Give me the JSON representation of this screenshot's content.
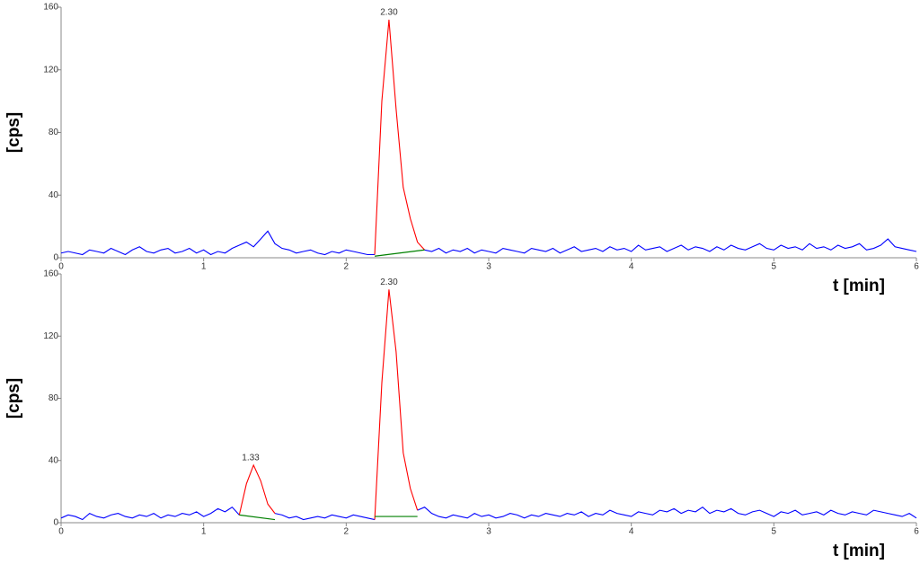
{
  "chart_data": [
    {
      "type": "line",
      "ylabel": "[cps]",
      "xlabel": "t [min]",
      "xlim": [
        0,
        6
      ],
      "ylim": [
        0,
        160
      ],
      "xticks": [
        0,
        1,
        2,
        3,
        4,
        5,
        6
      ],
      "yticks": [
        0,
        40,
        80,
        120,
        160
      ],
      "x": [
        0,
        0.05,
        0.1,
        0.15,
        0.2,
        0.25,
        0.3,
        0.35,
        0.4,
        0.45,
        0.5,
        0.55,
        0.6,
        0.65,
        0.7,
        0.75,
        0.8,
        0.85,
        0.9,
        0.95,
        1,
        1.05,
        1.1,
        1.15,
        1.2,
        1.25,
        1.3,
        1.35,
        1.4,
        1.45,
        1.5,
        1.55,
        1.6,
        1.65,
        1.7,
        1.75,
        1.8,
        1.85,
        1.9,
        1.95,
        2,
        2.05,
        2.1,
        2.15,
        2.2,
        2.25,
        2.3,
        2.35,
        2.4,
        2.45,
        2.5,
        2.55,
        2.6,
        2.65,
        2.7,
        2.75,
        2.8,
        2.85,
        2.9,
        2.95,
        3,
        3.05,
        3.1,
        3.15,
        3.2,
        3.25,
        3.3,
        3.35,
        3.4,
        3.45,
        3.5,
        3.55,
        3.6,
        3.65,
        3.7,
        3.75,
        3.8,
        3.85,
        3.9,
        3.95,
        4,
        4.05,
        4.1,
        4.15,
        4.2,
        4.25,
        4.3,
        4.35,
        4.4,
        4.45,
        4.5,
        4.55,
        4.6,
        4.65,
        4.7,
        4.75,
        4.8,
        4.85,
        4.9,
        4.95,
        5,
        5.05,
        5.1,
        5.15,
        5.2,
        5.25,
        5.3,
        5.35,
        5.4,
        5.45,
        5.5,
        5.55,
        5.6,
        5.65,
        5.7,
        5.75,
        5.8,
        5.85,
        5.9,
        5.95,
        6
      ],
      "series": [
        {
          "color": "#0000ff",
          "values": [
            3,
            4,
            3,
            2,
            5,
            4,
            3,
            6,
            4,
            2,
            5,
            7,
            4,
            3,
            5,
            6,
            3,
            4,
            6,
            3,
            5,
            2,
            4,
            3,
            6,
            8,
            10,
            7,
            12,
            17,
            9,
            6,
            5,
            3,
            4,
            5,
            3,
            2,
            4,
            3,
            5,
            4,
            3,
            2,
            2,
            null,
            null,
            null,
            null,
            null,
            null,
            5,
            4,
            6,
            3,
            5,
            4,
            6,
            3,
            5,
            4,
            3,
            6,
            5,
            4,
            3,
            6,
            5,
            4,
            6,
            3,
            5,
            7,
            4,
            5,
            6,
            4,
            7,
            5,
            6,
            4,
            8,
            5,
            6,
            7,
            4,
            6,
            8,
            5,
            7,
            6,
            4,
            7,
            5,
            8,
            6,
            5,
            7,
            9,
            6,
            5,
            8,
            6,
            7,
            5,
            9,
            6,
            7,
            5,
            8,
            6,
            7,
            9,
            5,
            6,
            8,
            12,
            7,
            6,
            5,
            4
          ]
        },
        {
          "color": "#ff0000",
          "values": [
            null,
            null,
            null,
            null,
            null,
            null,
            null,
            null,
            null,
            null,
            null,
            null,
            null,
            null,
            null,
            null,
            null,
            null,
            null,
            null,
            null,
            null,
            null,
            null,
            null,
            null,
            null,
            null,
            null,
            null,
            null,
            null,
            null,
            null,
            null,
            null,
            null,
            null,
            null,
            null,
            null,
            null,
            null,
            null,
            2,
            100,
            152,
            95,
            45,
            25,
            10,
            5,
            null,
            null,
            null,
            null,
            null,
            null,
            null,
            null,
            null,
            null,
            null,
            null,
            null,
            null,
            null,
            null,
            null,
            null,
            null,
            null,
            null,
            null,
            null,
            null,
            null,
            null,
            null,
            null,
            null,
            null,
            null,
            null,
            null,
            null,
            null,
            null,
            null,
            null,
            null,
            null,
            null,
            null,
            null,
            null,
            null,
            null,
            null,
            null,
            null,
            null,
            null,
            null,
            null,
            null,
            null,
            null,
            null,
            null,
            null,
            null,
            null,
            null,
            null,
            null,
            null,
            null,
            null,
            null,
            null
          ]
        }
      ],
      "baselines": [
        {
          "color": "#008000",
          "x": [
            2.2,
            2.55
          ],
          "values": [
            1,
            5
          ]
        }
      ],
      "annotations": [
        {
          "text": "2.30",
          "x": 2.3
        }
      ]
    },
    {
      "type": "line",
      "ylabel": "[cps]",
      "xlabel": "t [min]",
      "xlim": [
        0,
        6
      ],
      "ylim": [
        0,
        160
      ],
      "xticks": [
        0,
        1,
        2,
        3,
        4,
        5,
        6
      ],
      "yticks": [
        0,
        40,
        80,
        120,
        160
      ],
      "x": [
        0,
        0.05,
        0.1,
        0.15,
        0.2,
        0.25,
        0.3,
        0.35,
        0.4,
        0.45,
        0.5,
        0.55,
        0.6,
        0.65,
        0.7,
        0.75,
        0.8,
        0.85,
        0.9,
        0.95,
        1,
        1.05,
        1.1,
        1.15,
        1.2,
        1.25,
        1.3,
        1.35,
        1.4,
        1.45,
        1.5,
        1.55,
        1.6,
        1.65,
        1.7,
        1.75,
        1.8,
        1.85,
        1.9,
        1.95,
        2,
        2.05,
        2.1,
        2.15,
        2.2,
        2.25,
        2.3,
        2.35,
        2.4,
        2.45,
        2.5,
        2.55,
        2.6,
        2.65,
        2.7,
        2.75,
        2.8,
        2.85,
        2.9,
        2.95,
        3,
        3.05,
        3.1,
        3.15,
        3.2,
        3.25,
        3.3,
        3.35,
        3.4,
        3.45,
        3.5,
        3.55,
        3.6,
        3.65,
        3.7,
        3.75,
        3.8,
        3.85,
        3.9,
        3.95,
        4,
        4.05,
        4.1,
        4.15,
        4.2,
        4.25,
        4.3,
        4.35,
        4.4,
        4.45,
        4.5,
        4.55,
        4.6,
        4.65,
        4.7,
        4.75,
        4.8,
        4.85,
        4.9,
        4.95,
        5,
        5.05,
        5.1,
        5.15,
        5.2,
        5.25,
        5.3,
        5.35,
        5.4,
        5.45,
        5.5,
        5.55,
        5.6,
        5.65,
        5.7,
        5.75,
        5.8,
        5.85,
        5.9,
        5.95,
        6
      ],
      "series": [
        {
          "color": "#0000ff",
          "values": [
            3,
            5,
            4,
            2,
            6,
            4,
            3,
            5,
            6,
            4,
            3,
            5,
            4,
            6,
            3,
            5,
            4,
            6,
            5,
            7,
            4,
            6,
            9,
            7,
            10,
            5,
            null,
            null,
            null,
            null,
            6,
            5,
            3,
            4,
            2,
            3,
            4,
            3,
            5,
            4,
            3,
            5,
            4,
            3,
            2,
            null,
            null,
            null,
            null,
            null,
            8,
            10,
            6,
            4,
            3,
            5,
            4,
            3,
            6,
            4,
            5,
            3,
            4,
            6,
            5,
            3,
            5,
            4,
            6,
            5,
            4,
            6,
            5,
            7,
            4,
            6,
            5,
            8,
            6,
            5,
            4,
            7,
            6,
            5,
            8,
            7,
            9,
            6,
            8,
            7,
            10,
            6,
            8,
            7,
            9,
            6,
            5,
            7,
            8,
            6,
            4,
            7,
            6,
            8,
            5,
            6,
            7,
            5,
            8,
            6,
            5,
            7,
            6,
            5,
            8,
            7,
            6,
            5,
            4,
            6,
            3
          ]
        },
        {
          "color": "#ff0000",
          "values": [
            null,
            null,
            null,
            null,
            null,
            null,
            null,
            null,
            null,
            null,
            null,
            null,
            null,
            null,
            null,
            null,
            null,
            null,
            null,
            null,
            null,
            null,
            null,
            null,
            null,
            5,
            25,
            37,
            27,
            12,
            6,
            null,
            null,
            null,
            null,
            null,
            null,
            null,
            null,
            null,
            null,
            null,
            null,
            null,
            2,
            90,
            150,
            110,
            45,
            22,
            8,
            null,
            null,
            null,
            null,
            null,
            null,
            null,
            null,
            null,
            null,
            null,
            null,
            null,
            null,
            null,
            null,
            null,
            null,
            null,
            null,
            null,
            null,
            null,
            null,
            null,
            null,
            null,
            null,
            null,
            null,
            null,
            null,
            null,
            null,
            null,
            null,
            null,
            null,
            null,
            null,
            null,
            null,
            null,
            null,
            null,
            null,
            null,
            null,
            null,
            null,
            null,
            null,
            null,
            null,
            null,
            null,
            null,
            null,
            null,
            null,
            null,
            null,
            null,
            null,
            null,
            null,
            null,
            null,
            null,
            null
          ]
        }
      ],
      "baselines": [
        {
          "color": "#008000",
          "x": [
            1.25,
            1.5
          ],
          "values": [
            5,
            2
          ]
        },
        {
          "color": "#008000",
          "x": [
            2.2,
            2.5
          ],
          "values": [
            4,
            4
          ]
        }
      ],
      "annotations": [
        {
          "text": "1.33",
          "x": 1.33
        },
        {
          "text": "2.30",
          "x": 2.3
        }
      ]
    }
  ]
}
